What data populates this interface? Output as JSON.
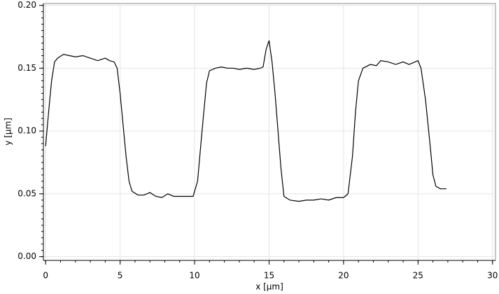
{
  "chart_data": {
    "type": "line",
    "x_label": "x [µm]",
    "y_label": "y [µm]",
    "xlim": [
      -0.15,
      30.2
    ],
    "ylim": [
      -0.003,
      0.2015
    ],
    "xticks": [
      0,
      5,
      10,
      15,
      20,
      25,
      30
    ],
    "yticks": [
      {
        "value": 0,
        "label": "0.00"
      },
      0.05,
      {
        "value": 0.1,
        "label": "0.10"
      },
      0.15,
      {
        "value": 0.2,
        "label": "0.20"
      }
    ],
    "grid": true,
    "series": [
      {
        "color": "#000000",
        "x": [
          0,
          0.2,
          0.4,
          0.6,
          0.8,
          1.2,
          1.6,
          2.0,
          2.5,
          3.0,
          3.5,
          4.0,
          4.3,
          4.6,
          4.8,
          5.0,
          5.2,
          5.4,
          5.6,
          5.8,
          6.2,
          6.6,
          7.0,
          7.4,
          7.8,
          8.2,
          8.6,
          9.0,
          9.5,
          9.9,
          10.2,
          10.5,
          10.8,
          11.0,
          11.4,
          11.8,
          12.2,
          12.6,
          13.0,
          13.5,
          14.0,
          14.4,
          14.6,
          14.8,
          15.0,
          15.2,
          15.4,
          15.6,
          15.8,
          16.0,
          16.4,
          17.0,
          17.5,
          18.0,
          18.5,
          19.0,
          19.5,
          20.0,
          20.3,
          20.6,
          20.8,
          21.0,
          21.3,
          21.8,
          22.2,
          22.5,
          23.0,
          23.5,
          24.0,
          24.4,
          24.8,
          25.0,
          25.2,
          25.5,
          25.8,
          26.0,
          26.2,
          26.5,
          26.9
        ],
        "values": [
          0.088,
          0.115,
          0.14,
          0.155,
          0.158,
          0.161,
          0.16,
          0.159,
          0.16,
          0.158,
          0.156,
          0.158,
          0.156,
          0.155,
          0.15,
          0.13,
          0.105,
          0.08,
          0.06,
          0.052,
          0.049,
          0.049,
          0.051,
          0.048,
          0.047,
          0.05,
          0.048,
          0.048,
          0.048,
          0.048,
          0.06,
          0.1,
          0.138,
          0.148,
          0.15,
          0.151,
          0.15,
          0.15,
          0.149,
          0.15,
          0.149,
          0.15,
          0.151,
          0.165,
          0.172,
          0.155,
          0.13,
          0.1,
          0.07,
          0.048,
          0.045,
          0.044,
          0.045,
          0.045,
          0.046,
          0.045,
          0.047,
          0.047,
          0.05,
          0.08,
          0.115,
          0.14,
          0.15,
          0.153,
          0.152,
          0.156,
          0.155,
          0.153,
          0.155,
          0.153,
          0.155,
          0.156,
          0.15,
          0.125,
          0.09,
          0.065,
          0.056,
          0.054,
          0.054
        ]
      }
    ]
  }
}
